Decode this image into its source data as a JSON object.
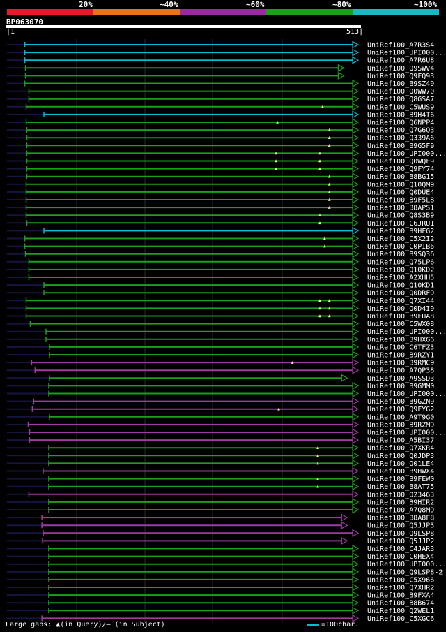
{
  "scale": {
    "labels": [
      "20%",
      "~40%",
      "~60%",
      "~80%",
      "~100%"
    ],
    "colors": [
      "#e8192c",
      "#e8741a",
      "#9a2aa0",
      "#1aa01a",
      "#1ab8c0"
    ]
  },
  "query": {
    "name": "BP063070",
    "start": "1",
    "end": "513",
    "length": 513
  },
  "legend": {
    "gaps_text": "Large gaps: ▲(in Query)/– (in Subject)",
    "scale_text": "=100char."
  },
  "colors": {
    "cyan": "#00bcd4",
    "green": "#1aa01a",
    "magenta": "#a03aa0",
    "dark": "#151540",
    "marker": "#ffff99"
  },
  "hits": [
    {
      "label": "UniRef100_A7R3S4",
      "start": 27,
      "end": 513,
      "color": "cyan",
      "markers": []
    },
    {
      "label": "UniRef100_UPI000...",
      "start": 27,
      "end": 513,
      "color": "cyan",
      "markers": []
    },
    {
      "label": "UniRef100_A7R6U8",
      "start": 27,
      "end": 513,
      "color": "cyan",
      "markers": []
    },
    {
      "label": "UniRef100_Q9SWV4",
      "start": 28,
      "end": 492,
      "color": "green",
      "markers": []
    },
    {
      "label": "UniRef100_Q9FQ93",
      "start": 28,
      "end": 492,
      "color": "green",
      "markers": []
    },
    {
      "label": "UniRef100_B9SZ49",
      "start": 27,
      "end": 513,
      "color": "green",
      "markers": []
    },
    {
      "label": "UniRef100_Q0WW70",
      "start": 33,
      "end": 513,
      "color": "green",
      "markers": []
    },
    {
      "label": "UniRef100_Q8GSA7",
      "start": 33,
      "end": 513,
      "color": "green",
      "markers": []
    },
    {
      "label": "UniRef100_C5WUS9",
      "start": 29,
      "end": 513,
      "color": "green",
      "markers": [
        462
      ]
    },
    {
      "label": "UniRef100_B9H4T6",
      "start": 55,
      "end": 513,
      "color": "cyan",
      "markers": []
    },
    {
      "label": "UniRef100_Q6NPP4",
      "start": 29,
      "end": 513,
      "color": "green",
      "markers": [
        396
      ]
    },
    {
      "label": "UniRef100_Q7G6Q3",
      "start": 30,
      "end": 513,
      "color": "green",
      "markers": [
        472
      ]
    },
    {
      "label": "UniRef100_Q339A6",
      "start": 30,
      "end": 513,
      "color": "green",
      "markers": [
        472
      ]
    },
    {
      "label": "UniRef100_B9G5F9",
      "start": 30,
      "end": 513,
      "color": "green",
      "markers": [
        472
      ]
    },
    {
      "label": "UniRef100_UPI000...",
      "start": 30,
      "end": 513,
      "color": "green",
      "markers": [
        394,
        458
      ]
    },
    {
      "label": "UniRef100_Q0WQF9",
      "start": 30,
      "end": 513,
      "color": "green",
      "markers": [
        394,
        458
      ]
    },
    {
      "label": "UniRef100_Q9FY74",
      "start": 30,
      "end": 513,
      "color": "green",
      "markers": [
        394,
        458
      ]
    },
    {
      "label": "UniRef100_B8BG15",
      "start": 30,
      "end": 513,
      "color": "green",
      "markers": [
        472
      ]
    },
    {
      "label": "UniRef100_Q10QM9",
      "start": 29,
      "end": 513,
      "color": "green",
      "markers": [
        472
      ]
    },
    {
      "label": "UniRef100_Q0DUE4",
      "start": 29,
      "end": 513,
      "color": "green",
      "markers": [
        472
      ]
    },
    {
      "label": "UniRef100_B9F5L8",
      "start": 29,
      "end": 513,
      "color": "green",
      "markers": [
        472
      ]
    },
    {
      "label": "UniRef100_B8APS1",
      "start": 29,
      "end": 513,
      "color": "green",
      "markers": [
        472
      ]
    },
    {
      "label": "UniRef100_Q8S3B9",
      "start": 29,
      "end": 513,
      "color": "green",
      "markers": [
        458
      ]
    },
    {
      "label": "UniRef100_C6JRU1",
      "start": 30,
      "end": 513,
      "color": "green",
      "markers": [
        458
      ]
    },
    {
      "label": "UniRef100_B9HFG2",
      "start": 55,
      "end": 513,
      "color": "cyan",
      "markers": []
    },
    {
      "label": "UniRef100_C5X2I2",
      "start": 27,
      "end": 513,
      "color": "green",
      "markers": [
        465
      ]
    },
    {
      "label": "UniRef100_C0PIB6",
      "start": 27,
      "end": 513,
      "color": "green",
      "markers": [
        465
      ]
    },
    {
      "label": "UniRef100_B9SQ36",
      "start": 28,
      "end": 513,
      "color": "green",
      "markers": []
    },
    {
      "label": "UniRef100_Q75LP6",
      "start": 33,
      "end": 513,
      "color": "green",
      "markers": []
    },
    {
      "label": "UniRef100_Q10KD2",
      "start": 33,
      "end": 513,
      "color": "green",
      "markers": []
    },
    {
      "label": "UniRef100_A2XHH5",
      "start": 33,
      "end": 513,
      "color": "green",
      "markers": []
    },
    {
      "label": "UniRef100_Q10KD1",
      "start": 55,
      "end": 513,
      "color": "green",
      "markers": []
    },
    {
      "label": "UniRef100_Q0DRF9",
      "start": 55,
      "end": 513,
      "color": "green",
      "markers": []
    },
    {
      "label": "UniRef100_Q7XI44",
      "start": 29,
      "end": 513,
      "color": "green",
      "markers": [
        458,
        472
      ]
    },
    {
      "label": "UniRef100_Q0D4I9",
      "start": 29,
      "end": 513,
      "color": "green",
      "markers": [
        458,
        472
      ]
    },
    {
      "label": "UniRef100_B9FUA8",
      "start": 29,
      "end": 513,
      "color": "green",
      "markers": [
        458,
        472
      ]
    },
    {
      "label": "UniRef100_C5WX08",
      "start": 35,
      "end": 513,
      "color": "green",
      "markers": []
    },
    {
      "label": "UniRef100_UPI000...",
      "start": 58,
      "end": 513,
      "color": "green",
      "markers": []
    },
    {
      "label": "UniRef100_B9HXG6",
      "start": 58,
      "end": 513,
      "color": "green",
      "markers": []
    },
    {
      "label": "UniRef100_C6TFZ3",
      "start": 63,
      "end": 513,
      "color": "green",
      "markers": []
    },
    {
      "label": "UniRef100_B9RZY1",
      "start": 63,
      "end": 513,
      "color": "green",
      "markers": []
    },
    {
      "label": "UniRef100_B9RMC9",
      "start": 37,
      "end": 513,
      "color": "magenta",
      "markers": [
        418
      ]
    },
    {
      "label": "UniRef100_A7QP38",
      "start": 42,
      "end": 513,
      "color": "magenta",
      "markers": []
    },
    {
      "label": "UniRef100_A9SSD3",
      "start": 63,
      "end": 497,
      "color": "green",
      "markers": []
    },
    {
      "label": "UniRef100_B9GMM0",
      "start": 62,
      "end": 513,
      "color": "green",
      "markers": []
    },
    {
      "label": "UniRef100_UPI000...",
      "start": 62,
      "end": 513,
      "color": "green",
      "markers": []
    },
    {
      "label": "UniRef100_B9GZN9",
      "start": 40,
      "end": 513,
      "color": "magenta",
      "markers": []
    },
    {
      "label": "UniRef100_Q9FYG2",
      "start": 38,
      "end": 513,
      "color": "magenta",
      "markers": [
        398
      ]
    },
    {
      "label": "UniRef100_A9T9G0",
      "start": 63,
      "end": 513,
      "color": "green",
      "markers": []
    },
    {
      "label": "UniRef100_B9RZM9",
      "start": 32,
      "end": 513,
      "color": "magenta",
      "markers": []
    },
    {
      "label": "UniRef100_UPI000...",
      "start": 34,
      "end": 513,
      "color": "magenta",
      "markers": []
    },
    {
      "label": "UniRef100_A5BI37",
      "start": 34,
      "end": 513,
      "color": "magenta",
      "markers": []
    },
    {
      "label": "UniRef100_Q7XKR4",
      "start": 62,
      "end": 513,
      "color": "green",
      "markers": [
        455
      ]
    },
    {
      "label": "UniRef100_Q0JDP3",
      "start": 62,
      "end": 513,
      "color": "green",
      "markers": [
        455
      ]
    },
    {
      "label": "UniRef100_Q01LE4",
      "start": 62,
      "end": 513,
      "color": "green",
      "markers": [
        455
      ]
    },
    {
      "label": "UniRef100_B9HWX4",
      "start": 54,
      "end": 513,
      "color": "magenta",
      "markers": []
    },
    {
      "label": "UniRef100_B9FEW0",
      "start": 62,
      "end": 513,
      "color": "green",
      "markers": [
        455
      ]
    },
    {
      "label": "UniRef100_B8AT75",
      "start": 62,
      "end": 513,
      "color": "green",
      "markers": [
        455
      ]
    },
    {
      "label": "UniRef100_O23463",
      "start": 33,
      "end": 513,
      "color": "magenta",
      "markers": []
    },
    {
      "label": "UniRef100_B9HIR2",
      "start": 62,
      "end": 513,
      "color": "green",
      "markers": []
    },
    {
      "label": "UniRef100_A7Q8M9",
      "start": 62,
      "end": 513,
      "color": "green",
      "markers": []
    },
    {
      "label": "UniRef100_B8A8F8",
      "start": 52,
      "end": 497,
      "color": "magenta",
      "markers": []
    },
    {
      "label": "UniRef100_Q5JJP3",
      "start": 52,
      "end": 497,
      "color": "magenta",
      "markers": []
    },
    {
      "label": "UniRef100_Q9LSP8",
      "start": 54,
      "end": 513,
      "color": "magenta",
      "markers": []
    },
    {
      "label": "UniRef100_Q5JJP2",
      "start": 53,
      "end": 497,
      "color": "magenta",
      "markers": []
    },
    {
      "label": "UniRef100_C4JAR3",
      "start": 62,
      "end": 513,
      "color": "green",
      "markers": []
    },
    {
      "label": "UniRef100_C0HEX4",
      "start": 62,
      "end": 513,
      "color": "green",
      "markers": []
    },
    {
      "label": "UniRef100_UPI000...",
      "start": 62,
      "end": 513,
      "color": "green",
      "markers": []
    },
    {
      "label": "UniRef100_Q9LSP8-2",
      "start": 62,
      "end": 513,
      "color": "green",
      "markers": []
    },
    {
      "label": "UniRef100_C5X966",
      "start": 62,
      "end": 513,
      "color": "green",
      "markers": []
    },
    {
      "label": "UniRef100_Q7XHR2",
      "start": 62,
      "end": 513,
      "color": "green",
      "markers": []
    },
    {
      "label": "UniRef100_B9FXA4",
      "start": 62,
      "end": 513,
      "color": "green",
      "markers": []
    },
    {
      "label": "UniRef100_B8B674",
      "start": 62,
      "end": 513,
      "color": "green",
      "markers": []
    },
    {
      "label": "UniRef100_Q2WEL1",
      "start": 62,
      "end": 513,
      "color": "green",
      "markers": []
    },
    {
      "label": "UniRef100_C5XGC6",
      "start": 52,
      "end": 513,
      "color": "magenta",
      "markers": []
    }
  ]
}
